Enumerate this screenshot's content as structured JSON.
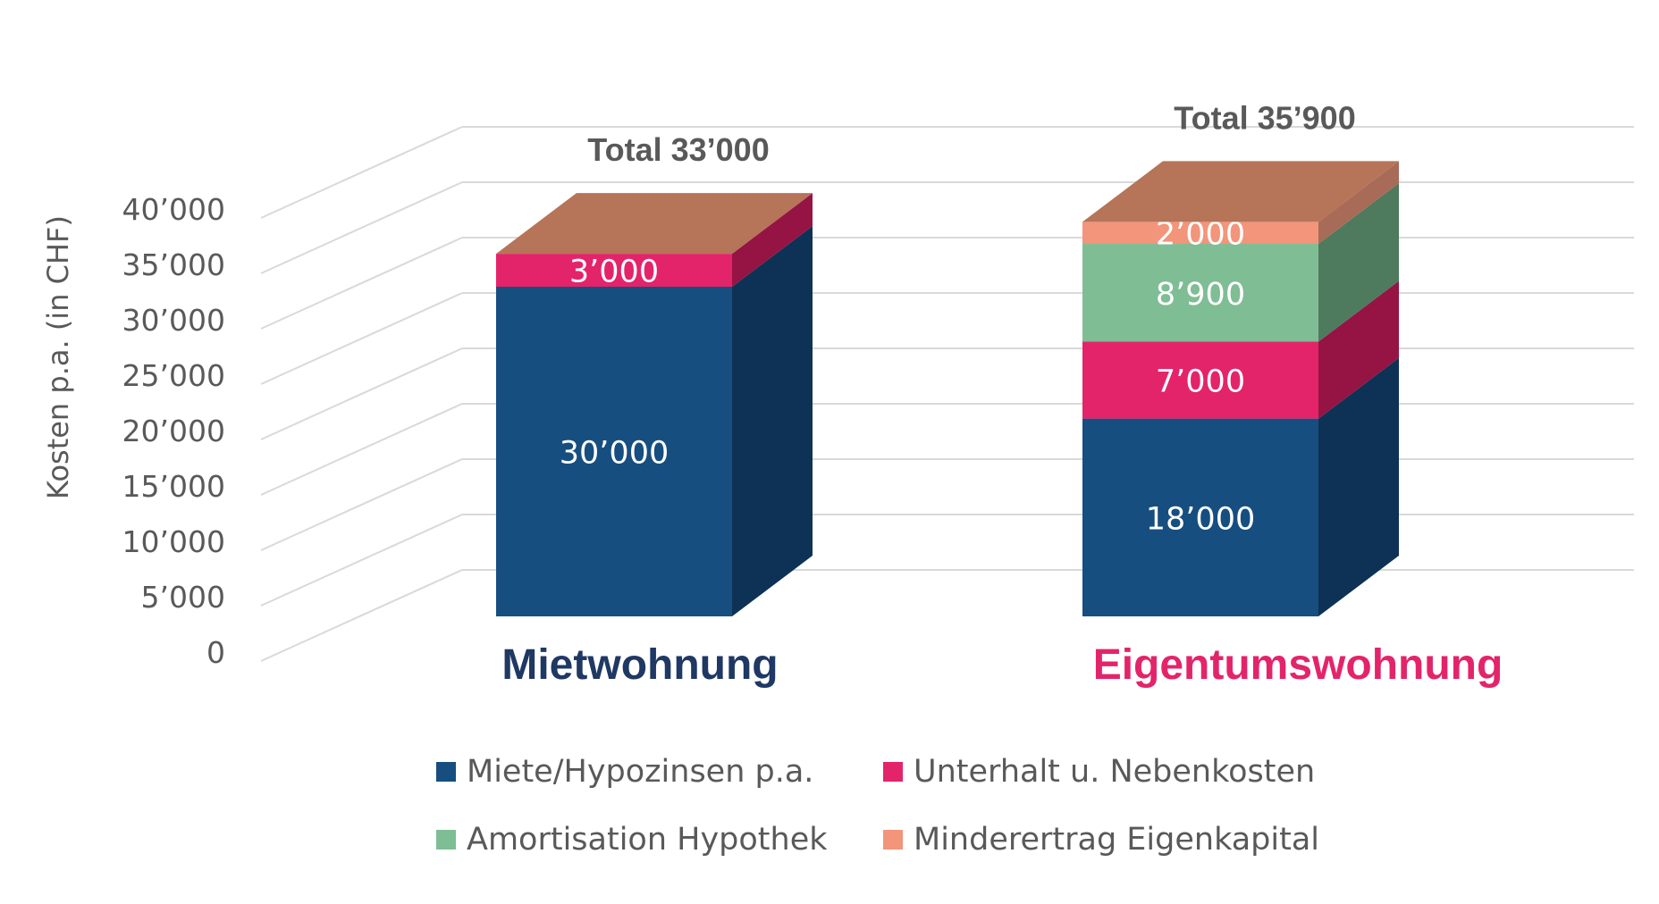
{
  "chart_data": {
    "type": "bar",
    "stacked": true,
    "three_d": true,
    "ylabel": "Kosten p.a. (in CHF)",
    "ylim": [
      0,
      40000
    ],
    "yticks": [
      0,
      5000,
      10000,
      15000,
      20000,
      25000,
      30000,
      35000,
      40000
    ],
    "ytick_labels": [
      "0",
      "5’000",
      "10’000",
      "15’000",
      "20’000",
      "25’000",
      "30’000",
      "35’000",
      "40’000"
    ],
    "categories": [
      "Mietwohnung",
      "Eigentumswohnung"
    ],
    "category_colors": [
      "#1F3864",
      "#E3246A"
    ],
    "totals": [
      "Total 33’000",
      "Total 35’900"
    ],
    "series": [
      {
        "name": "Miete/Hypozinsen p.a.",
        "color": "#174E80",
        "side_color": "#0D3255",
        "values": [
          30000,
          18000
        ],
        "labels": [
          "30’000",
          "18’000"
        ]
      },
      {
        "name": "Unterhalt u. Nebenkosten",
        "color": "#E3246A",
        "side_color": "#951444",
        "values": [
          3000,
          7000
        ],
        "labels": [
          "3’000",
          "7’000"
        ]
      },
      {
        "name": "Amortisation Hypothek",
        "color": "#7FBD95",
        "side_color": "#4E7A5D",
        "values": [
          0,
          8900
        ],
        "labels": [
          "",
          "8’900"
        ]
      },
      {
        "name": "Minderertrag Eigenkapital",
        "color": "#F2957A",
        "side_color": "#A86B58",
        "values": [
          0,
          2000
        ],
        "labels": [
          "",
          "2’000"
        ]
      }
    ],
    "top_color": "#B67458"
  }
}
